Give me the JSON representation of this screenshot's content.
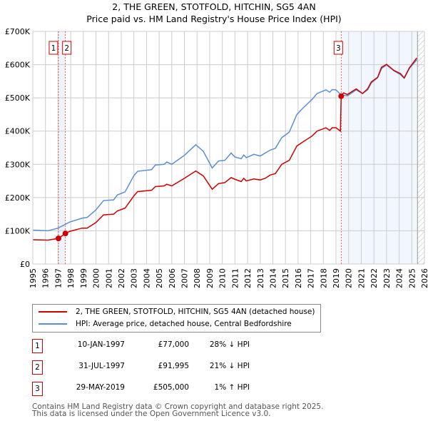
{
  "chart_data": {
    "type": "line",
    "title": "2, THE GREEN, STOTFOLD, HITCHIN, SG5 4AN",
    "subtitle": "Price paid vs. HM Land Registry's House Price Index (HPI)",
    "xlim": [
      1995,
      2026
    ],
    "ylim": [
      0,
      700000
    ],
    "grid": true,
    "x_ticks": [
      "1995",
      "1996",
      "1997",
      "1998",
      "1999",
      "2000",
      "2001",
      "2002",
      "2003",
      "2004",
      "2005",
      "2006",
      "2007",
      "2008",
      "2009",
      "2010",
      "2011",
      "2012",
      "2013",
      "2014",
      "2015",
      "2016",
      "2017",
      "2018",
      "2019",
      "2020",
      "2021",
      "2022",
      "2023",
      "2024",
      "2025",
      "2026"
    ],
    "y_ticks": [
      {
        "v": 0,
        "label": "£0"
      },
      {
        "v": 100000,
        "label": "£100K"
      },
      {
        "v": 200000,
        "label": "£200K"
      },
      {
        "v": 300000,
        "label": "£300K"
      },
      {
        "v": 400000,
        "label": "£400K"
      },
      {
        "v": 500000,
        "label": "£500K"
      },
      {
        "v": 600000,
        "label": "£600K"
      },
      {
        "v": 700000,
        "label": "£700K"
      }
    ],
    "series": [
      {
        "name": "2, THE GREEN, STOTFOLD, HITCHIN, SG5 4AN (detached house)",
        "color": "#cc0000",
        "x": [
          1995,
          1996.2,
          1997.03,
          1997.58,
          1997.9,
          1998.9,
          1999.3,
          2000.0,
          2000.6,
          2001.4,
          2001.7,
          2002.3,
          2003.0,
          2003.3,
          2004.4,
          2004.7,
          2005.4,
          2005.6,
          2006.0,
          2007.0,
          2007.9,
          2008.5,
          2009.2,
          2009.7,
          2010.2,
          2010.7,
          2011.0,
          2011.5,
          2011.7,
          2011.9,
          2012.5,
          2013.0,
          2013.4,
          2013.8,
          2014.2,
          2014.7,
          2015.3,
          2015.9,
          2016.4,
          2017.1,
          2017.5,
          2018.2,
          2018.5,
          2018.7,
          2019.0,
          2019.35,
          2019.41,
          2019.6,
          2019.9,
          2020.6,
          2021.1,
          2021.5,
          2021.8,
          2022.3,
          2022.6,
          2023.0,
          2023.6,
          2024.1,
          2024.4,
          2024.8,
          2025.4
        ],
        "y": [
          73000,
          72000,
          77000,
          91995,
          98000,
          108000,
          108000,
          125000,
          148000,
          150000,
          160000,
          168000,
          205000,
          218000,
          222000,
          233000,
          235000,
          240000,
          235000,
          258000,
          280000,
          265000,
          225000,
          242000,
          245000,
          260000,
          255000,
          248000,
          258000,
          250000,
          256000,
          253000,
          258000,
          268000,
          272000,
          300000,
          312000,
          355000,
          368000,
          385000,
          400000,
          410000,
          402000,
          410000,
          410000,
          400000,
          505000,
          515000,
          510000,
          527000,
          513000,
          527000,
          548000,
          562000,
          592000,
          601000,
          582000,
          573000,
          560000,
          590000,
          620000
        ]
      },
      {
        "name": "HPI: Average price, detached house, Central Bedfordshire",
        "color": "#5b8fd1",
        "x": [
          1995,
          1996.2,
          1997.0,
          1997.9,
          1998.9,
          1999.3,
          2000.0,
          2000.6,
          2001.4,
          2001.7,
          2002.3,
          2003.0,
          2003.3,
          2004.4,
          2004.7,
          2005.4,
          2005.6,
          2006.0,
          2007.0,
          2007.9,
          2008.5,
          2009.2,
          2009.7,
          2010.2,
          2010.7,
          2011.0,
          2011.5,
          2011.7,
          2011.9,
          2012.5,
          2013.0,
          2013.4,
          2013.8,
          2014.2,
          2014.7,
          2015.3,
          2015.9,
          2016.4,
          2017.1,
          2017.5,
          2018.2,
          2018.5,
          2018.7,
          2019.0,
          2019.4,
          2019.9,
          2020.6,
          2021.1,
          2021.5,
          2021.8,
          2022.3,
          2022.6,
          2023.0,
          2023.6,
          2024.1,
          2024.4,
          2024.8,
          2025.4
        ],
        "y": [
          102000,
          100000,
          108000,
          126000,
          138000,
          140000,
          163000,
          191000,
          193000,
          208000,
          217000,
          266000,
          279000,
          284000,
          298000,
          300000,
          307000,
          300000,
          327000,
          359000,
          339000,
          289000,
          310000,
          312000,
          334000,
          322000,
          317000,
          328000,
          320000,
          330000,
          325000,
          334000,
          343000,
          348000,
          380000,
          397000,
          450000,
          470000,
          495000,
          513000,
          524000,
          517000,
          525000,
          524000,
          509000,
          506000,
          524000,
          513000,
          524000,
          545000,
          561000,
          588000,
          599000,
          581000,
          570000,
          559000,
          588000,
          615000
        ]
      }
    ],
    "sales": [
      {
        "id": "1",
        "x": 1997.03,
        "price": 77000,
        "date": "10-JAN-1997",
        "price_label": "£77,000",
        "hpi": "28% ↓ HPI"
      },
      {
        "id": "2",
        "x": 1997.58,
        "price": 91995,
        "date": "31-JUL-1997",
        "price_label": "£91,995",
        "hpi": "21% ↓ HPI"
      },
      {
        "id": "3",
        "x": 2019.41,
        "price": 505000,
        "date": "29-MAY-2019",
        "price_label": "£505,000",
        "hpi": "1% ↑ HPI"
      }
    ],
    "forecast_start": 2025.45
  },
  "footer": {
    "line1": "Contains HM Land Registry data © Crown copyright and database right 2025.",
    "line2": "This data is licensed under the Open Government Licence v3.0."
  }
}
